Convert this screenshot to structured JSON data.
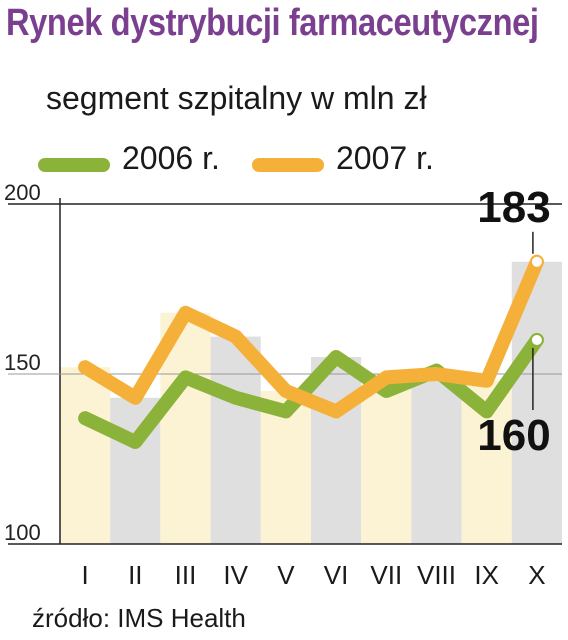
{
  "chart_data": {
    "type": "line",
    "title": "Rynek dystrybucji farmaceutycznej",
    "subtitle": "segment szpitalny w mln zł",
    "categories": [
      "I",
      "II",
      "III",
      "IV",
      "V",
      "VI",
      "VII",
      "VIII",
      "IX",
      "X"
    ],
    "series": [
      {
        "name": "2006 r.",
        "color": "#8bb33a",
        "values": [
          137,
          130,
          149,
          143,
          139,
          155,
          145,
          151,
          139,
          160
        ]
      },
      {
        "name": "2007 r.",
        "color": "#f5b03a",
        "values": [
          152,
          143,
          168,
          161,
          145,
          139,
          149,
          150,
          148,
          183
        ]
      }
    ],
    "ylim": [
      100,
      200
    ],
    "yticks": [
      100,
      150,
      200
    ],
    "grid": true,
    "legend": "top",
    "annotations": [
      {
        "series": "2007 r.",
        "category": "X",
        "text": "183"
      },
      {
        "series": "2006 r.",
        "category": "X",
        "text": "160"
      }
    ],
    "source": "źródło: IMS Health"
  }
}
